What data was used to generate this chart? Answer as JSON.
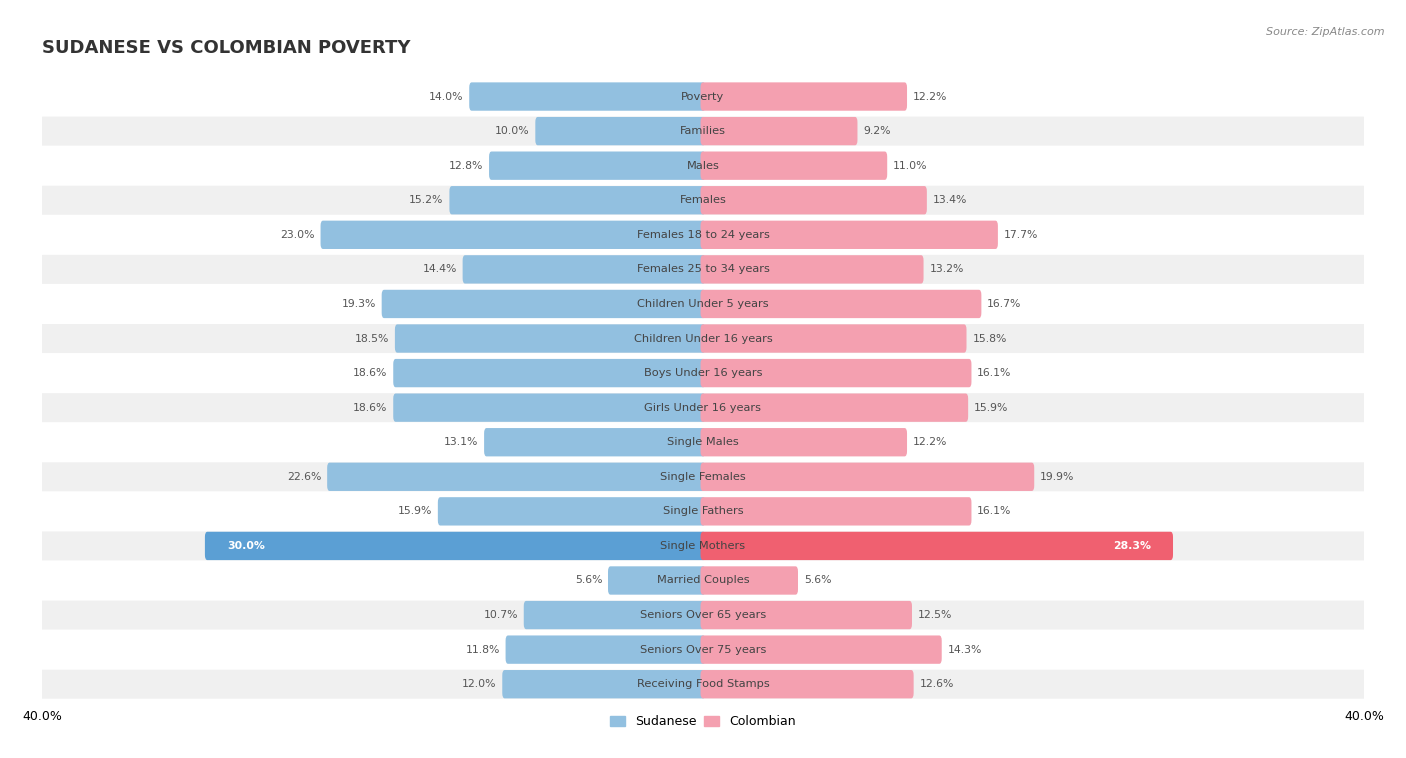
{
  "title": "SUDANESE VS COLOMBIAN POVERTY",
  "source": "Source: ZipAtlas.com",
  "categories": [
    "Poverty",
    "Families",
    "Males",
    "Females",
    "Females 18 to 24 years",
    "Females 25 to 34 years",
    "Children Under 5 years",
    "Children Under 16 years",
    "Boys Under 16 years",
    "Girls Under 16 years",
    "Single Males",
    "Single Females",
    "Single Fathers",
    "Single Mothers",
    "Married Couples",
    "Seniors Over 65 years",
    "Seniors Over 75 years",
    "Receiving Food Stamps"
  ],
  "sudanese": [
    14.0,
    10.0,
    12.8,
    15.2,
    23.0,
    14.4,
    19.3,
    18.5,
    18.6,
    18.6,
    13.1,
    22.6,
    15.9,
    30.0,
    5.6,
    10.7,
    11.8,
    12.0
  ],
  "colombian": [
    12.2,
    9.2,
    11.0,
    13.4,
    17.7,
    13.2,
    16.7,
    15.8,
    16.1,
    15.9,
    12.2,
    19.9,
    16.1,
    28.3,
    5.6,
    12.5,
    14.3,
    12.6
  ],
  "sudanese_color": "#92c0e0",
  "colombian_color": "#f4a0b0",
  "sudanese_highlight_color": "#5b9fd4",
  "colombian_highlight_color": "#f06070",
  "highlight_rows": [
    13
  ],
  "bar_height": 0.52,
  "bg_color": "#ffffff",
  "row_bg_color": "#f0f0f0",
  "row_white_color": "#ffffff",
  "axis_max": 40.0,
  "legend_sudanese": "Sudanese",
  "legend_colombian": "Colombian",
  "title_fontsize": 13,
  "label_fontsize": 8.2,
  "value_fontsize": 7.8,
  "source_fontsize": 8.0
}
